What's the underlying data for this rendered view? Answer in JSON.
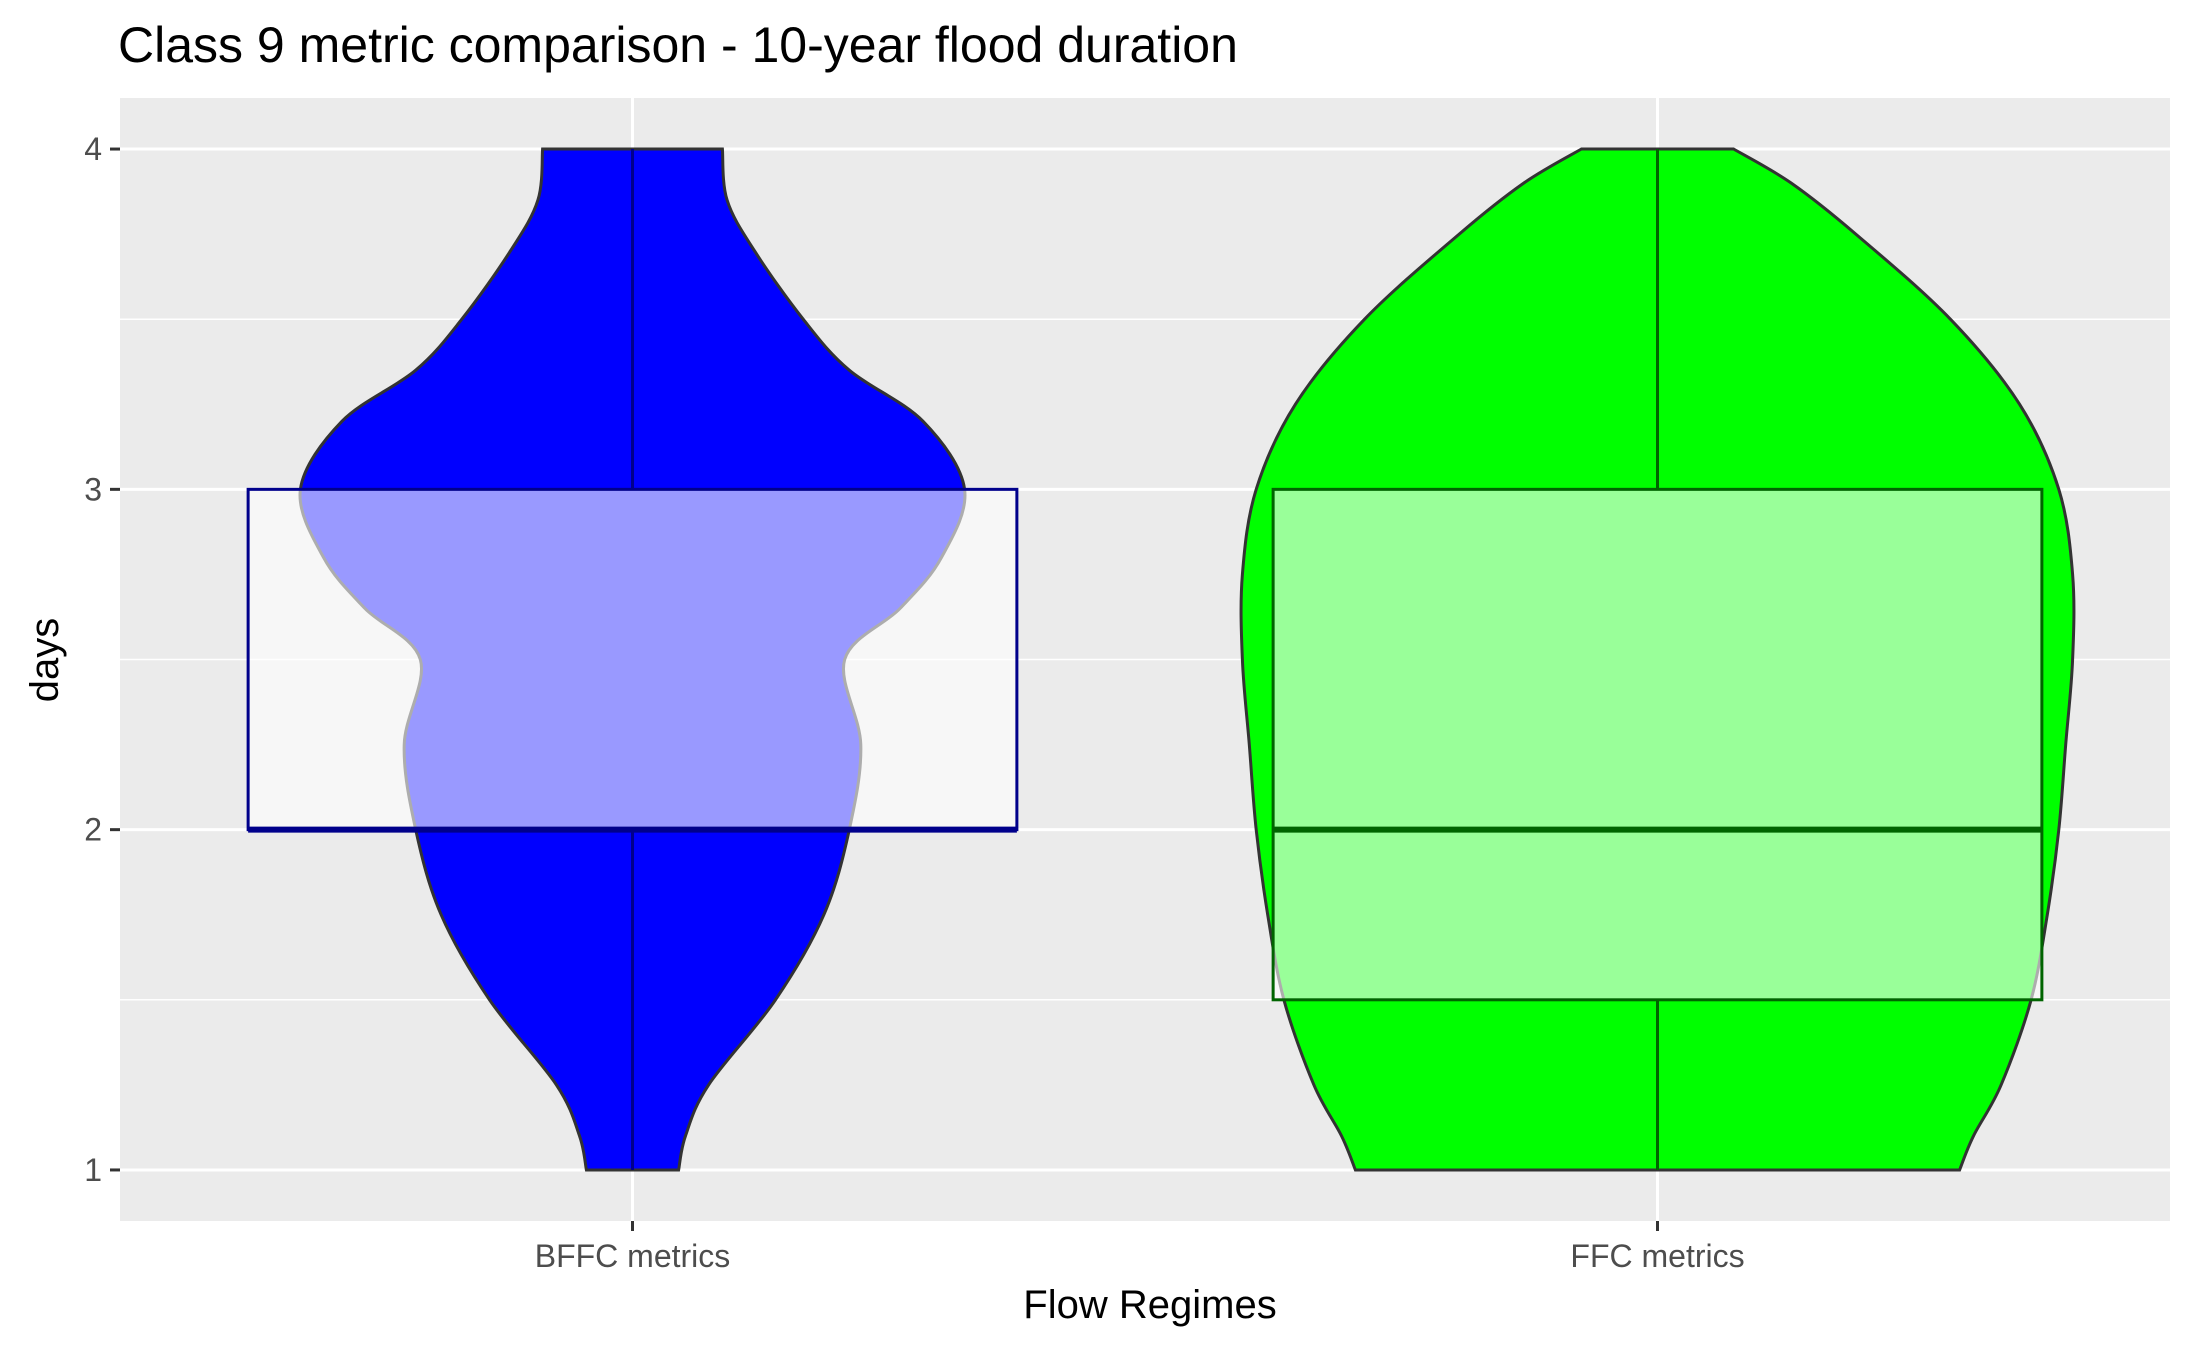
{
  "chart_data": {
    "type": "violin",
    "title": "Class 9 metric comparison - 10-year flood duration",
    "xlabel": "Flow Regimes",
    "ylabel": "days",
    "categories": [
      "BFFC metrics",
      "FFC metrics"
    ],
    "ylim": [
      0.85,
      4.15
    ],
    "yticks": [
      1,
      2,
      3,
      4
    ],
    "grid": true,
    "legend": "none",
    "panel_background": "#ebebeb",
    "series": [
      {
        "category": "BFFC metrics",
        "fill": "#0000ff",
        "box": {
          "whisker_low": 1,
          "q1": 2,
          "median": 2,
          "q3": 3,
          "whisker_high": 4
        },
        "box_fill": "#ffffff",
        "box_fill_opacity": 0.6,
        "box_line": "#00008b",
        "density_y": [
          1.0,
          1.1,
          1.25,
          1.5,
          1.75,
          2.0,
          2.25,
          2.5,
          2.65,
          2.8,
          3.0,
          3.2,
          3.35,
          3.5,
          3.7,
          3.85,
          4.0
        ],
        "density_w": [
          0.1,
          0.115,
          0.165,
          0.31,
          0.415,
          0.47,
          0.495,
          0.46,
          0.58,
          0.67,
          0.72,
          0.63,
          0.47,
          0.37,
          0.265,
          0.205,
          0.195
        ]
      },
      {
        "category": "FFC metrics",
        "fill": "#00ff00",
        "box": {
          "whisker_low": 1,
          "q1": 1.5,
          "median": 2,
          "q3": 3,
          "whisker_high": 4
        },
        "box_fill": "#ffffff",
        "box_fill_opacity": 0.6,
        "box_line": "#006400",
        "density_y": [
          1.0,
          1.1,
          1.25,
          1.5,
          1.75,
          2.0,
          2.25,
          2.5,
          2.75,
          3.0,
          3.25,
          3.5,
          3.75,
          3.9,
          4.0
        ],
        "density_w": [
          0.655,
          0.685,
          0.745,
          0.81,
          0.845,
          0.87,
          0.885,
          0.9,
          0.9,
          0.87,
          0.785,
          0.635,
          0.43,
          0.29,
          0.165
        ]
      }
    ]
  }
}
